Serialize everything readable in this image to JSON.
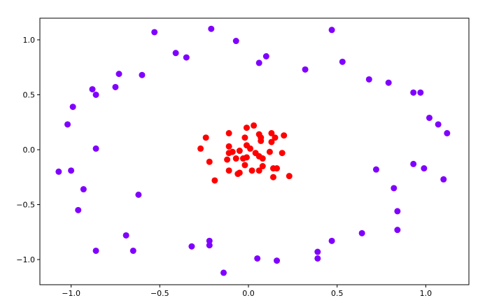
{
  "chart_data": {
    "type": "scatter",
    "title": "",
    "xlabel": "",
    "ylabel": "",
    "xlim": [
      -1.176,
      1.243
    ],
    "ylim": [
      -1.229,
      1.197
    ],
    "grid": false,
    "x_ticks": [
      -1.0,
      -0.5,
      0.0,
      0.5,
      1.0
    ],
    "x_tick_labels": [
      "−1.0",
      "−0.5",
      "0.0",
      "0.5",
      "1.0"
    ],
    "y_ticks": [
      -1.0,
      -0.5,
      0.0,
      0.5,
      1.0
    ],
    "y_tick_labels": [
      "−1.0",
      "−0.5",
      "0.0",
      "0.5",
      "1.0"
    ],
    "series": [
      {
        "color": "#8000ff",
        "points": [
          [
            -0.53,
            1.07
          ],
          [
            -0.21,
            1.1
          ],
          [
            -0.07,
            0.99
          ],
          [
            0.47,
            1.09
          ],
          [
            -0.41,
            0.88
          ],
          [
            -0.35,
            0.84
          ],
          [
            0.1,
            0.85
          ],
          [
            0.06,
            0.79
          ],
          [
            0.53,
            0.8
          ],
          [
            0.32,
            0.73
          ],
          [
            -0.73,
            0.69
          ],
          [
            -0.6,
            0.68
          ],
          [
            0.68,
            0.64
          ],
          [
            0.79,
            0.61
          ],
          [
            -0.75,
            0.57
          ],
          [
            -0.88,
            0.55
          ],
          [
            -0.86,
            0.5
          ],
          [
            0.93,
            0.52
          ],
          [
            0.97,
            0.52
          ],
          [
            -0.99,
            0.39
          ],
          [
            1.02,
            0.29
          ],
          [
            1.07,
            0.23
          ],
          [
            -1.02,
            0.23
          ],
          [
            1.12,
            0.15
          ],
          [
            -0.86,
            0.01
          ],
          [
            -1.07,
            -0.2
          ],
          [
            -1.0,
            -0.19
          ],
          [
            0.72,
            -0.18
          ],
          [
            0.93,
            -0.13
          ],
          [
            0.99,
            -0.17
          ],
          [
            1.1,
            -0.27
          ],
          [
            -0.93,
            -0.36
          ],
          [
            0.82,
            -0.35
          ],
          [
            -0.62,
            -0.41
          ],
          [
            -0.96,
            -0.55
          ],
          [
            0.84,
            -0.56
          ],
          [
            0.84,
            -0.73
          ],
          [
            -0.69,
            -0.78
          ],
          [
            0.64,
            -0.76
          ],
          [
            -0.22,
            -0.83
          ],
          [
            -0.32,
            -0.88
          ],
          [
            -0.22,
            -0.87
          ],
          [
            0.47,
            -0.83
          ],
          [
            -0.86,
            -0.92
          ],
          [
            -0.65,
            -0.92
          ],
          [
            0.39,
            -0.93
          ],
          [
            0.39,
            -0.99
          ],
          [
            0.05,
            -0.99
          ],
          [
            0.16,
            -1.01
          ],
          [
            -0.14,
            -1.12
          ]
        ]
      },
      {
        "color": "#ff0000",
        "points": [
          [
            -0.24,
            0.11
          ],
          [
            -0.27,
            0.01
          ],
          [
            -0.22,
            -0.11
          ],
          [
            -0.19,
            -0.28
          ],
          [
            -0.11,
            0.15
          ],
          [
            -0.11,
            0.03
          ],
          [
            -0.11,
            -0.03
          ],
          [
            -0.09,
            -0.02
          ],
          [
            -0.12,
            -0.09
          ],
          [
            -0.11,
            -0.19
          ],
          [
            -0.01,
            0.2
          ],
          [
            0.03,
            0.22
          ],
          [
            -0.02,
            0.11
          ],
          [
            0.06,
            0.14
          ],
          [
            0.07,
            0.11
          ],
          [
            0.07,
            0.08
          ],
          [
            0.13,
            0.15
          ],
          [
            0.15,
            0.11
          ],
          [
            0.13,
            0.07
          ],
          [
            0.2,
            0.13
          ],
          [
            -0.01,
            0.04
          ],
          [
            0.01,
            0.01
          ],
          [
            -0.05,
            -0.01
          ],
          [
            0.04,
            -0.03
          ],
          [
            0.06,
            -0.06
          ],
          [
            0.08,
            -0.08
          ],
          [
            -0.07,
            -0.08
          ],
          [
            -0.03,
            -0.08
          ],
          [
            -0.01,
            -0.07
          ],
          [
            -0.02,
            -0.14
          ],
          [
            0.12,
            -0.02
          ],
          [
            0.19,
            -0.03
          ],
          [
            0.08,
            -0.15
          ],
          [
            0.06,
            -0.19
          ],
          [
            0.02,
            -0.19
          ],
          [
            -0.06,
            -0.22
          ],
          [
            -0.05,
            -0.21
          ],
          [
            0.16,
            -0.17
          ],
          [
            0.14,
            -0.17
          ],
          [
            0.14,
            -0.25
          ],
          [
            0.23,
            -0.24
          ]
        ]
      }
    ]
  }
}
